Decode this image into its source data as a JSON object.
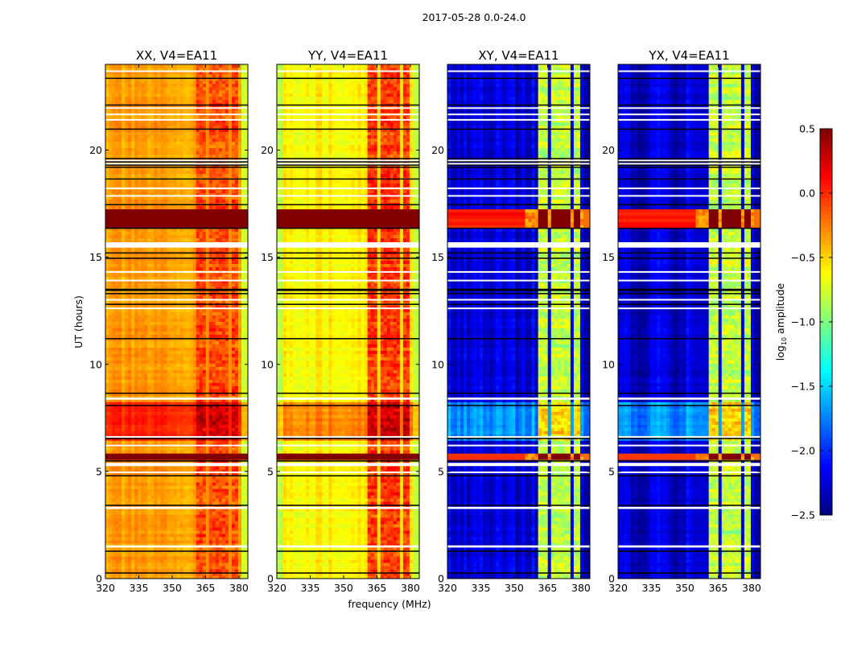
{
  "chart_data": {
    "type": "heatmap",
    "title": "2017-05-28 0.0-24.0",
    "xlabel": "frequency (MHz)",
    "ylabel": "UT (hours)",
    "xlim": [
      320,
      384
    ],
    "ylim": [
      0,
      24
    ],
    "xticks": [
      "320",
      "335",
      "350",
      "365",
      "380"
    ],
    "xtick_values": [
      320,
      335,
      350,
      365,
      380
    ],
    "yticks": [
      "0",
      "5",
      "10",
      "15",
      "20"
    ],
    "ytick_values": [
      0,
      5,
      10,
      15,
      20
    ],
    "panels": [
      {
        "title": "XX, V4=EA11",
        "base_level": -0.35,
        "band_level": -0.1,
        "edge_level": -0.75
      },
      {
        "title": "YY, V4=EA11",
        "base_level": -0.6,
        "band_level": -0.05,
        "edge_level": -0.8
      },
      {
        "title": "XY, V4=EA11",
        "base_level": -2.25,
        "band_level": -0.8,
        "edge_level": -2.4
      },
      {
        "title": "YX, V4=EA11",
        "base_level": -2.25,
        "band_level": -0.8,
        "edge_level": -2.4
      }
    ],
    "rfi_bands_mhz": [
      [
        361,
        365.5
      ],
      [
        366.5,
        370.5
      ],
      [
        371.5,
        375.5
      ],
      [
        376.5,
        380
      ]
    ],
    "saturated_hours": [
      [
        16.4,
        17.25
      ],
      [
        5.5,
        5.8
      ]
    ],
    "elevated_hours": [
      [
        6.5,
        8.3
      ]
    ],
    "flagged_hours": [
      [
        23.65,
        23.72
      ],
      [
        21.95,
        22.0
      ],
      [
        21.65,
        21.7
      ],
      [
        21.4,
        21.45
      ],
      [
        19.5,
        19.55
      ],
      [
        19.35,
        19.4
      ],
      [
        18.2,
        18.25
      ],
      [
        17.85,
        17.9
      ],
      [
        15.45,
        15.7
      ],
      [
        14.3,
        14.35
      ],
      [
        13.9,
        13.95
      ],
      [
        13.0,
        13.05
      ],
      [
        12.6,
        12.65
      ],
      [
        8.35,
        8.45
      ],
      [
        6.6,
        6.65
      ],
      [
        6.2,
        6.25
      ],
      [
        5.25,
        5.4
      ],
      [
        4.95,
        5.0
      ],
      [
        3.25,
        3.35
      ],
      [
        1.45,
        1.55
      ]
    ],
    "scan_boundaries_hours": [
      23.35,
      22.1,
      20.98,
      19.6,
      19.45,
      19.3,
      19.2,
      18.65,
      17.45,
      16.35,
      15.2,
      14.95,
      13.5,
      13.45,
      13.3,
      12.8,
      11.2,
      8.65,
      8.08,
      6.54,
      5.49,
      4.8,
      3.42,
      1.28,
      0.26
    ],
    "colorbar": {
      "label": "log10 amplitude",
      "label_main": "log",
      "label_sub": "10",
      "label_rest": " amplitude",
      "range": [
        -2.5,
        0.5
      ],
      "colormap": "jet",
      "ticks": [
        "0.5",
        "0.0",
        "−0.5",
        "−1.0",
        "−1.5",
        "−2.0",
        "−2.5"
      ],
      "tick_values": [
        0.5,
        0.0,
        -0.5,
        -1.0,
        -1.5,
        -2.0,
        -2.5
      ]
    }
  }
}
